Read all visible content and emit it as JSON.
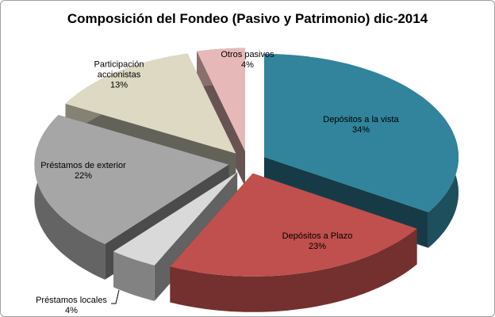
{
  "chart_data": {
    "type": "pie3d",
    "title": "Composición del Fondeo (Pasivo y Patrimonio) dic-2014",
    "categories": [
      "Depósitos a la vista",
      "Depósitos a Plazo",
      "Préstamos locales",
      "Préstamos de exterior",
      "Participación accionistas",
      "Otros pasivos"
    ],
    "values": [
      34,
      23,
      4,
      22,
      13,
      4
    ],
    "value_labels": [
      "34%",
      "23%",
      "4%",
      "22%",
      "13%",
      "4%"
    ],
    "colors": [
      "#31849b",
      "#c0504d",
      "#d9d9d9",
      "#a6a6a6",
      "#ddd9c3",
      "#e6b9b8"
    ]
  }
}
